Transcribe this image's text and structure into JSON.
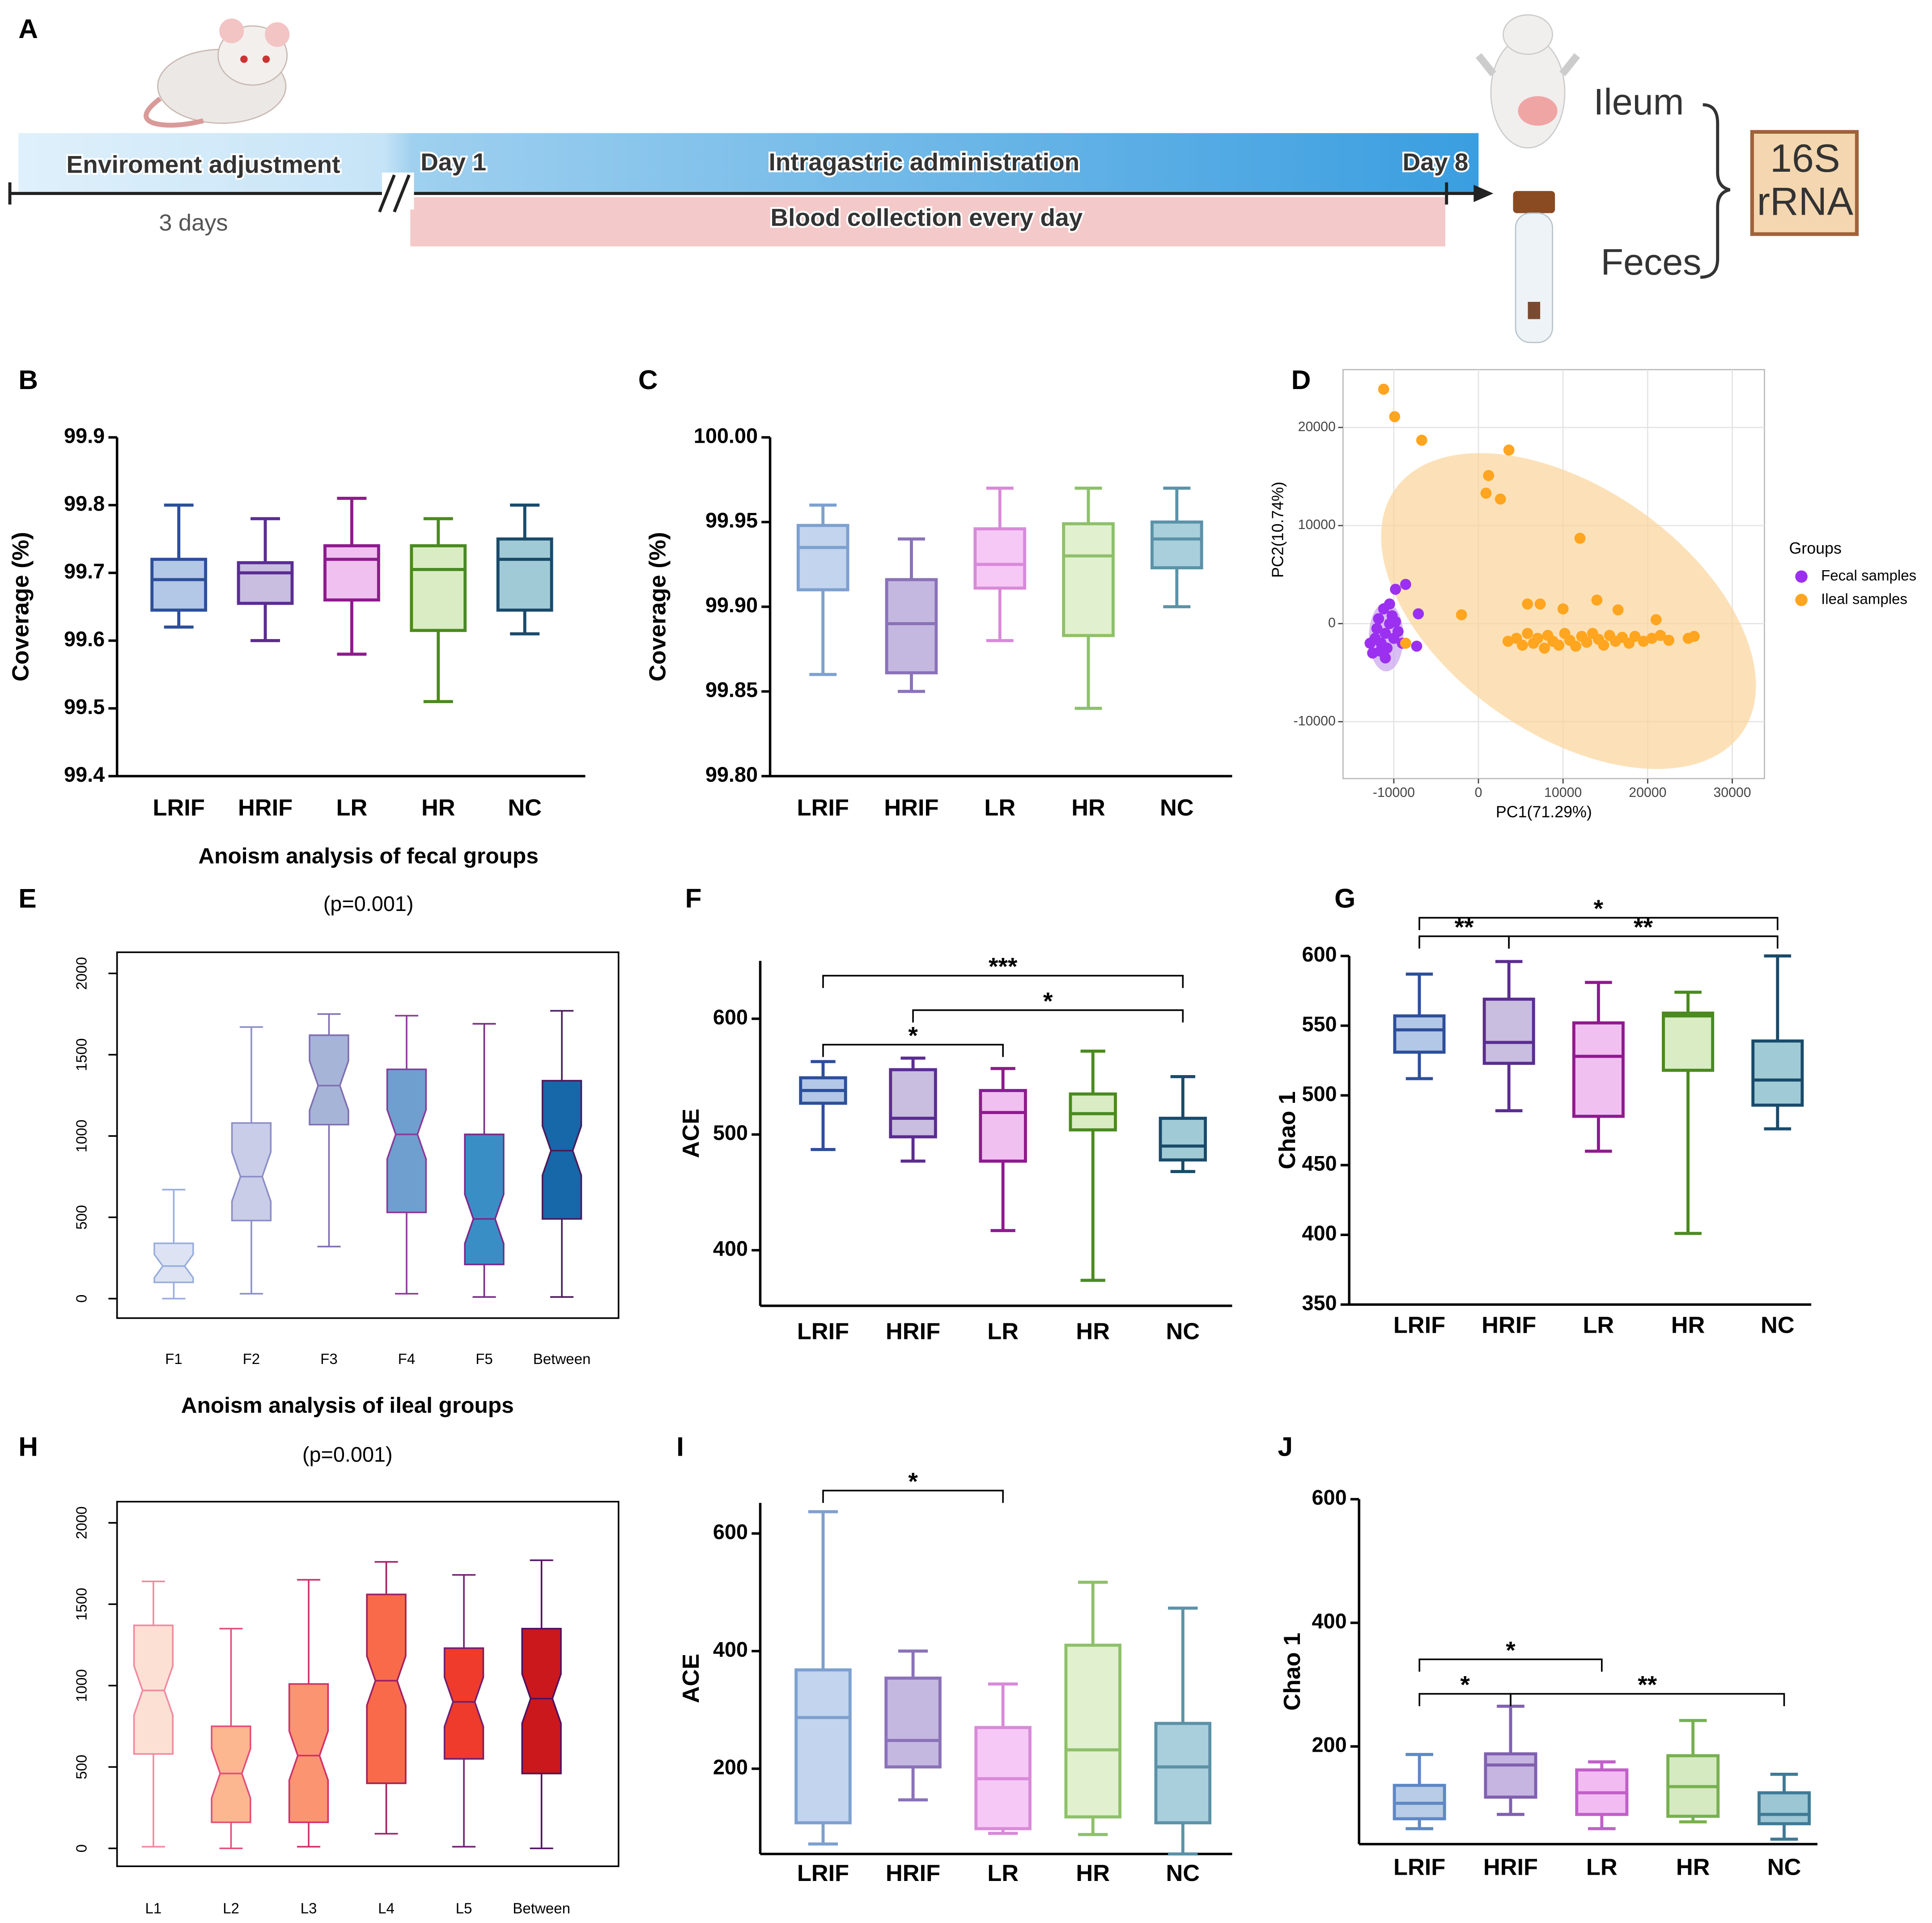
{
  "diagram": {
    "panel": "A",
    "env": "Enviroment adjustment",
    "env_days": "3 days",
    "day_start": "Day 1",
    "treatment": "Intragastric administration",
    "day_end": "Day 8",
    "blood": "Blood collection every day",
    "ileum": "Ileum",
    "feces": "Feces",
    "assay": [
      "16S",
      "rRNA"
    ]
  },
  "chart_data": [
    {
      "type": "box",
      "panel": "B",
      "ylabel": "Coverage (%)",
      "categories": [
        "LRIF",
        "HRIF",
        "LR",
        "HR",
        "NC"
      ],
      "boxes": [
        {
          "min": 99.62,
          "q1": 99.645,
          "median": 99.69,
          "q3": 99.72,
          "max": 99.8
        },
        {
          "min": 99.6,
          "q1": 99.655,
          "median": 99.7,
          "q3": 99.715,
          "max": 99.78
        },
        {
          "min": 99.58,
          "q1": 99.66,
          "median": 99.72,
          "q3": 99.74,
          "max": 99.81
        },
        {
          "min": 99.51,
          "q1": 99.615,
          "median": 99.705,
          "q3": 99.74,
          "max": 99.78
        },
        {
          "min": 99.61,
          "q1": 99.645,
          "median": 99.72,
          "q3": 99.75,
          "max": 99.8
        }
      ],
      "colors": [
        "#2c4f9a",
        "#5a2d91",
        "#8e1a8e",
        "#4a8a1f",
        "#1a4a6a"
      ],
      "fills": [
        "#b3c7e6",
        "#c9bde0",
        "#f0c0f0",
        "#d9ecc4",
        "#a0cbd6"
      ],
      "ylim": [
        99.4,
        99.9
      ],
      "yticks": [
        99.4,
        99.5,
        99.6,
        99.7,
        99.8,
        99.9
      ]
    },
    {
      "type": "box",
      "panel": "C",
      "ylabel": "Coverage (%)",
      "categories": [
        "LRIF",
        "HRIF",
        "LR",
        "HR",
        "NC"
      ],
      "boxes": [
        {
          "min": 99.86,
          "q1": 99.91,
          "median": 99.935,
          "q3": 99.948,
          "max": 99.96
        },
        {
          "min": 99.85,
          "q1": 99.861,
          "median": 99.89,
          "q3": 99.916,
          "max": 99.94
        },
        {
          "min": 99.88,
          "q1": 99.911,
          "median": 99.925,
          "q3": 99.946,
          "max": 99.97
        },
        {
          "min": 99.84,
          "q1": 99.883,
          "median": 99.93,
          "q3": 99.949,
          "max": 99.97
        },
        {
          "min": 99.9,
          "q1": 99.923,
          "median": 99.94,
          "q3": 99.95,
          "max": 99.97
        }
      ],
      "colors": [
        "#7da0cf",
        "#8a72b8",
        "#d88ad8",
        "#8ec06a",
        "#5b92a8"
      ],
      "fills": [
        "#c2d4ee",
        "#c5b8e0",
        "#f6c8f6",
        "#e1f0cf",
        "#a8cfdb"
      ],
      "ylim": [
        99.8,
        100
      ],
      "yticks": [
        {
          "value": 99.8,
          "label": "99.80"
        },
        99.85,
        {
          "value": 99.9,
          "label": "99.90"
        },
        99.95,
        {
          "value": 100,
          "label": "100.00"
        }
      ]
    },
    {
      "type": "scatter",
      "panel": "D",
      "xlabel": "PC1(71.29%)",
      "ylabel": "PC2(10.74%)",
      "legend_title": "Groups",
      "legend": "right",
      "grid": true,
      "xlim": [
        -16000,
        33800
      ],
      "ylim": [
        -15800,
        25900
      ],
      "xticks": [
        -10000,
        0,
        10000,
        20000,
        30000
      ],
      "yticks": [
        -10000,
        0,
        10000,
        20000
      ],
      "series": [
        {
          "name": "Fecal samples",
          "color": "#9b30f0",
          "x": [
            -8600,
            -9800,
            -7100,
            -7300,
            -11000,
            -11500,
            -10500,
            -12000,
            -11200,
            -10000,
            -12500,
            -10800,
            -9500,
            -11800,
            -10200,
            -12200,
            -9000,
            -11000,
            -10500,
            -11600,
            -12800,
            -9800
          ],
          "values": [
            4000,
            3500,
            1000,
            -2300,
            -1000,
            -2000,
            0,
            -500,
            1500,
            -1500,
            -3000,
            -2500,
            -800,
            500,
            800,
            -1500,
            -2000,
            -3500,
            2000,
            -2800,
            -2000,
            200
          ]
        },
        {
          "name": "Ileal samples",
          "color": "#ffa51f",
          "x": [
            -11200,
            -9900,
            -6700,
            3600,
            1200,
            900,
            2600,
            12000,
            -2000,
            -8600,
            3500,
            4500,
            5200,
            5800,
            6500,
            7000,
            7800,
            8200,
            8800,
            9500,
            10200,
            10800,
            11500,
            12200,
            12800,
            13500,
            14200,
            14800,
            15500,
            16200,
            17000,
            17800,
            18500,
            19500,
            20500,
            21500,
            22500,
            24800,
            25500,
            5800,
            7300,
            10000,
            14000,
            16500,
            21000
          ],
          "values": [
            23900,
            21100,
            18700,
            17700,
            15100,
            13300,
            12700,
            8700,
            900,
            -2000,
            -1800,
            -1500,
            -2200,
            -1000,
            -2000,
            -1500,
            -2500,
            -1200,
            -1800,
            -2200,
            -1000,
            -1700,
            -2300,
            -1300,
            -1900,
            -1000,
            -1600,
            -2200,
            -1200,
            -1800,
            -1400,
            -2000,
            -1300,
            -1800,
            -1500,
            -1200,
            -1700,
            -1500,
            -1300,
            2000,
            2000,
            1500,
            2400,
            1400,
            400
          ]
        }
      ]
    },
    {
      "type": "notched_box",
      "panel": "E",
      "title": "Anoism analysis of fecal groups",
      "subtitle": "(p=0.001)",
      "notched": true,
      "categories": [
        "F1",
        "F2",
        "F3",
        "F4",
        "F5",
        "Between"
      ],
      "boxes": [
        {
          "min": 0,
          "q1": 100,
          "median": 200,
          "q3": 340,
          "max": 670
        },
        {
          "min": 30,
          "q1": 480,
          "median": 750,
          "q3": 1080,
          "max": 1670
        },
        {
          "min": 320,
          "q1": 1070,
          "median": 1310,
          "q3": 1620,
          "max": 1750
        },
        {
          "min": 30,
          "q1": 530,
          "median": 1010,
          "q3": 1410,
          "max": 1740
        },
        {
          "min": 10,
          "q1": 210,
          "median": 490,
          "q3": 1010,
          "max": 1690
        },
        {
          "min": 10,
          "q1": 490,
          "median": 910,
          "q3": 1340,
          "max": 1770
        }
      ],
      "colors": [
        "#9aaedc",
        "#8c8ec8",
        "#8070b0",
        "#8a3a9a",
        "#7a2a8a",
        "#4a1a5a"
      ],
      "fills": [
        "#dde3f3",
        "#c9cde8",
        "#a6b4d8",
        "#6f9fcf",
        "#3a8ec6",
        "#1668a8"
      ],
      "ylim": [
        -120,
        2130
      ],
      "yticks": [
        0,
        500,
        1000,
        1500,
        2000
      ]
    },
    {
      "type": "box",
      "panel": "F",
      "ylabel": "ACE",
      "categories": [
        "LRIF",
        "HRIF",
        "LR",
        "HR",
        "NC"
      ],
      "boxes": [
        {
          "min": 487,
          "q1": 527,
          "median": 538,
          "q3": 549,
          "max": 563
        },
        {
          "min": 477,
          "q1": 498,
          "median": 514,
          "q3": 556,
          "max": 566
        },
        {
          "min": 417,
          "q1": 477,
          "median": 519,
          "q3": 538,
          "max": 557
        },
        {
          "min": 374,
          "q1": 504,
          "median": 518,
          "q3": 535,
          "max": 572
        },
        {
          "min": 468,
          "q1": 478,
          "median": 490,
          "q3": 514,
          "max": 550
        }
      ],
      "colors": [
        "#2c4f9a",
        "#5a2d91",
        "#8e1a8e",
        "#4a8a1f",
        "#1a4a6a"
      ],
      "fills": [
        "#b3c7e6",
        "#c9bde0",
        "#f0c0f0",
        "#d9ecc4",
        "#a0cbd6"
      ],
      "ylim": [
        352,
        650
      ],
      "yticks": [
        400,
        500,
        600
      ],
      "annotations": [
        {
          "text": "*",
          "from": "LRIF",
          "to": "LR"
        },
        {
          "text": "*",
          "from": "HRIF",
          "to": "NC"
        },
        {
          "text": "***",
          "from": "LRIF",
          "to": "NC"
        }
      ]
    },
    {
      "type": "box",
      "panel": "G",
      "ylabel": "Chao 1",
      "categories": [
        "LRIF",
        "HRIF",
        "LR",
        "HR",
        "NC"
      ],
      "boxes": [
        {
          "min": 512,
          "q1": 531,
          "median": 547,
          "q3": 557,
          "max": 587
        },
        {
          "min": 489,
          "q1": 523,
          "median": 538,
          "q3": 569,
          "max": 596
        },
        {
          "min": 460,
          "q1": 485,
          "median": 528,
          "q3": 552,
          "max": 581
        },
        {
          "min": 401,
          "q1": 518,
          "median": 557,
          "q3": 559,
          "max": 574
        },
        {
          "min": 476,
          "q1": 493,
          "median": 511,
          "q3": 539,
          "max": 600
        }
      ],
      "colors": [
        "#2c4f9a",
        "#5a2d91",
        "#8e1a8e",
        "#4a8a1f",
        "#1a4a6a"
      ],
      "fills": [
        "#b3c7e6",
        "#c9bde0",
        "#f0c0f0",
        "#d9ecc4",
        "#a0cbd6"
      ],
      "ylim": [
        350,
        600
      ],
      "yticks": [
        350,
        400,
        450,
        500,
        550,
        600
      ],
      "annotations": [
        {
          "text": "**",
          "from": "LRIF",
          "to": "HRIF"
        },
        {
          "text": "**",
          "from": "HRIF",
          "to": "NC"
        },
        {
          "text": "*",
          "from": "LRIF",
          "to": "NC"
        }
      ]
    },
    {
      "type": "notched_box",
      "panel": "H",
      "title": "Anoism analysis of ileal groups",
      "subtitle": "(p=0.001)",
      "notched": true,
      "categories": [
        "L1",
        "L2",
        "L3",
        "L4",
        "L5",
        "Between"
      ],
      "boxes": [
        {
          "min": 10,
          "q1": 580,
          "median": 970,
          "q3": 1370,
          "max": 1640
        },
        {
          "min": 0,
          "q1": 160,
          "median": 460,
          "q3": 750,
          "max": 1350
        },
        {
          "min": 10,
          "q1": 160,
          "median": 570,
          "q3": 1010,
          "max": 1650
        },
        {
          "min": 90,
          "q1": 400,
          "median": 1030,
          "q3": 1560,
          "max": 1760
        },
        {
          "min": 10,
          "q1": 550,
          "median": 900,
          "q3": 1230,
          "max": 1680
        },
        {
          "min": 0,
          "q1": 460,
          "median": 920,
          "q3": 1350,
          "max": 1770
        }
      ],
      "colors": [
        "#f08aa0",
        "#e0507a",
        "#d0306a",
        "#a02060",
        "#702070",
        "#501060"
      ],
      "fills": [
        "#fde0d4",
        "#fcb690",
        "#fb9470",
        "#f86a4a",
        "#ef3b2c",
        "#cb181d"
      ],
      "ylim": [
        -110,
        2130
      ],
      "yticks": [
        0,
        500,
        1000,
        1500,
        2000
      ]
    },
    {
      "type": "box",
      "panel": "I",
      "ylabel": "ACE",
      "categories": [
        "LRIF",
        "HRIF",
        "LR",
        "HR",
        "NC"
      ],
      "boxes": [
        {
          "min": 72,
          "q1": 108,
          "median": 287,
          "q3": 368,
          "max": 637
        },
        {
          "min": 147,
          "q1": 203,
          "median": 248,
          "q3": 354,
          "max": 400
        },
        {
          "min": 90,
          "q1": 98,
          "median": 183,
          "q3": 270,
          "max": 344
        },
        {
          "min": 88,
          "q1": 118,
          "median": 232,
          "q3": 410,
          "max": 517
        },
        {
          "min": 55,
          "q1": 108,
          "median": 203,
          "q3": 277,
          "max": 473
        }
      ],
      "colors": [
        "#7da0cf",
        "#8a72b8",
        "#d88ad8",
        "#8ec06a",
        "#5b92a8"
      ],
      "fills": [
        "#c2d4ee",
        "#c5b8e0",
        "#f6c8f6",
        "#e1f0cf",
        "#a8cfdb"
      ],
      "ylim": [
        55,
        652
      ],
      "yticks": [
        200,
        400,
        600
      ],
      "annotations": [
        {
          "text": "*",
          "from": "LRIF",
          "to": "LR"
        }
      ]
    },
    {
      "type": "box",
      "panel": "J",
      "ylabel": "Chao 1",
      "categories": [
        "LRIF",
        "HRIF",
        "LR",
        "HR",
        "NC"
      ],
      "boxes": [
        {
          "min": 67,
          "q1": 83,
          "median": 108,
          "q3": 137,
          "max": 187
        },
        {
          "min": 90,
          "q1": 118,
          "median": 170,
          "q3": 188,
          "max": 265
        },
        {
          "min": 67,
          "q1": 90,
          "median": 125,
          "q3": 162,
          "max": 175
        },
        {
          "min": 78,
          "q1": 87,
          "median": 135,
          "q3": 185,
          "max": 242
        },
        {
          "min": 50,
          "q1": 75,
          "median": 90,
          "q3": 125,
          "max": 155
        }
      ],
      "colors": [
        "#5f88c4",
        "#8060b0",
        "#c060c8",
        "#78b050",
        "#3f7a96"
      ],
      "fills": [
        "#b8cce8",
        "#c5b5e0",
        "#f2bcf2",
        "#d5eac0",
        "#9cc6d4"
      ],
      "ylim": [
        42,
        600
      ],
      "yticks": [
        200,
        400,
        600
      ],
      "annotations": [
        {
          "text": "*",
          "from": "LRIF",
          "to": "HRIF"
        },
        {
          "text": "**",
          "from": "HRIF",
          "to": "NC"
        },
        {
          "text": "*",
          "from": "LRIF",
          "to": "LR"
        }
      ]
    }
  ]
}
